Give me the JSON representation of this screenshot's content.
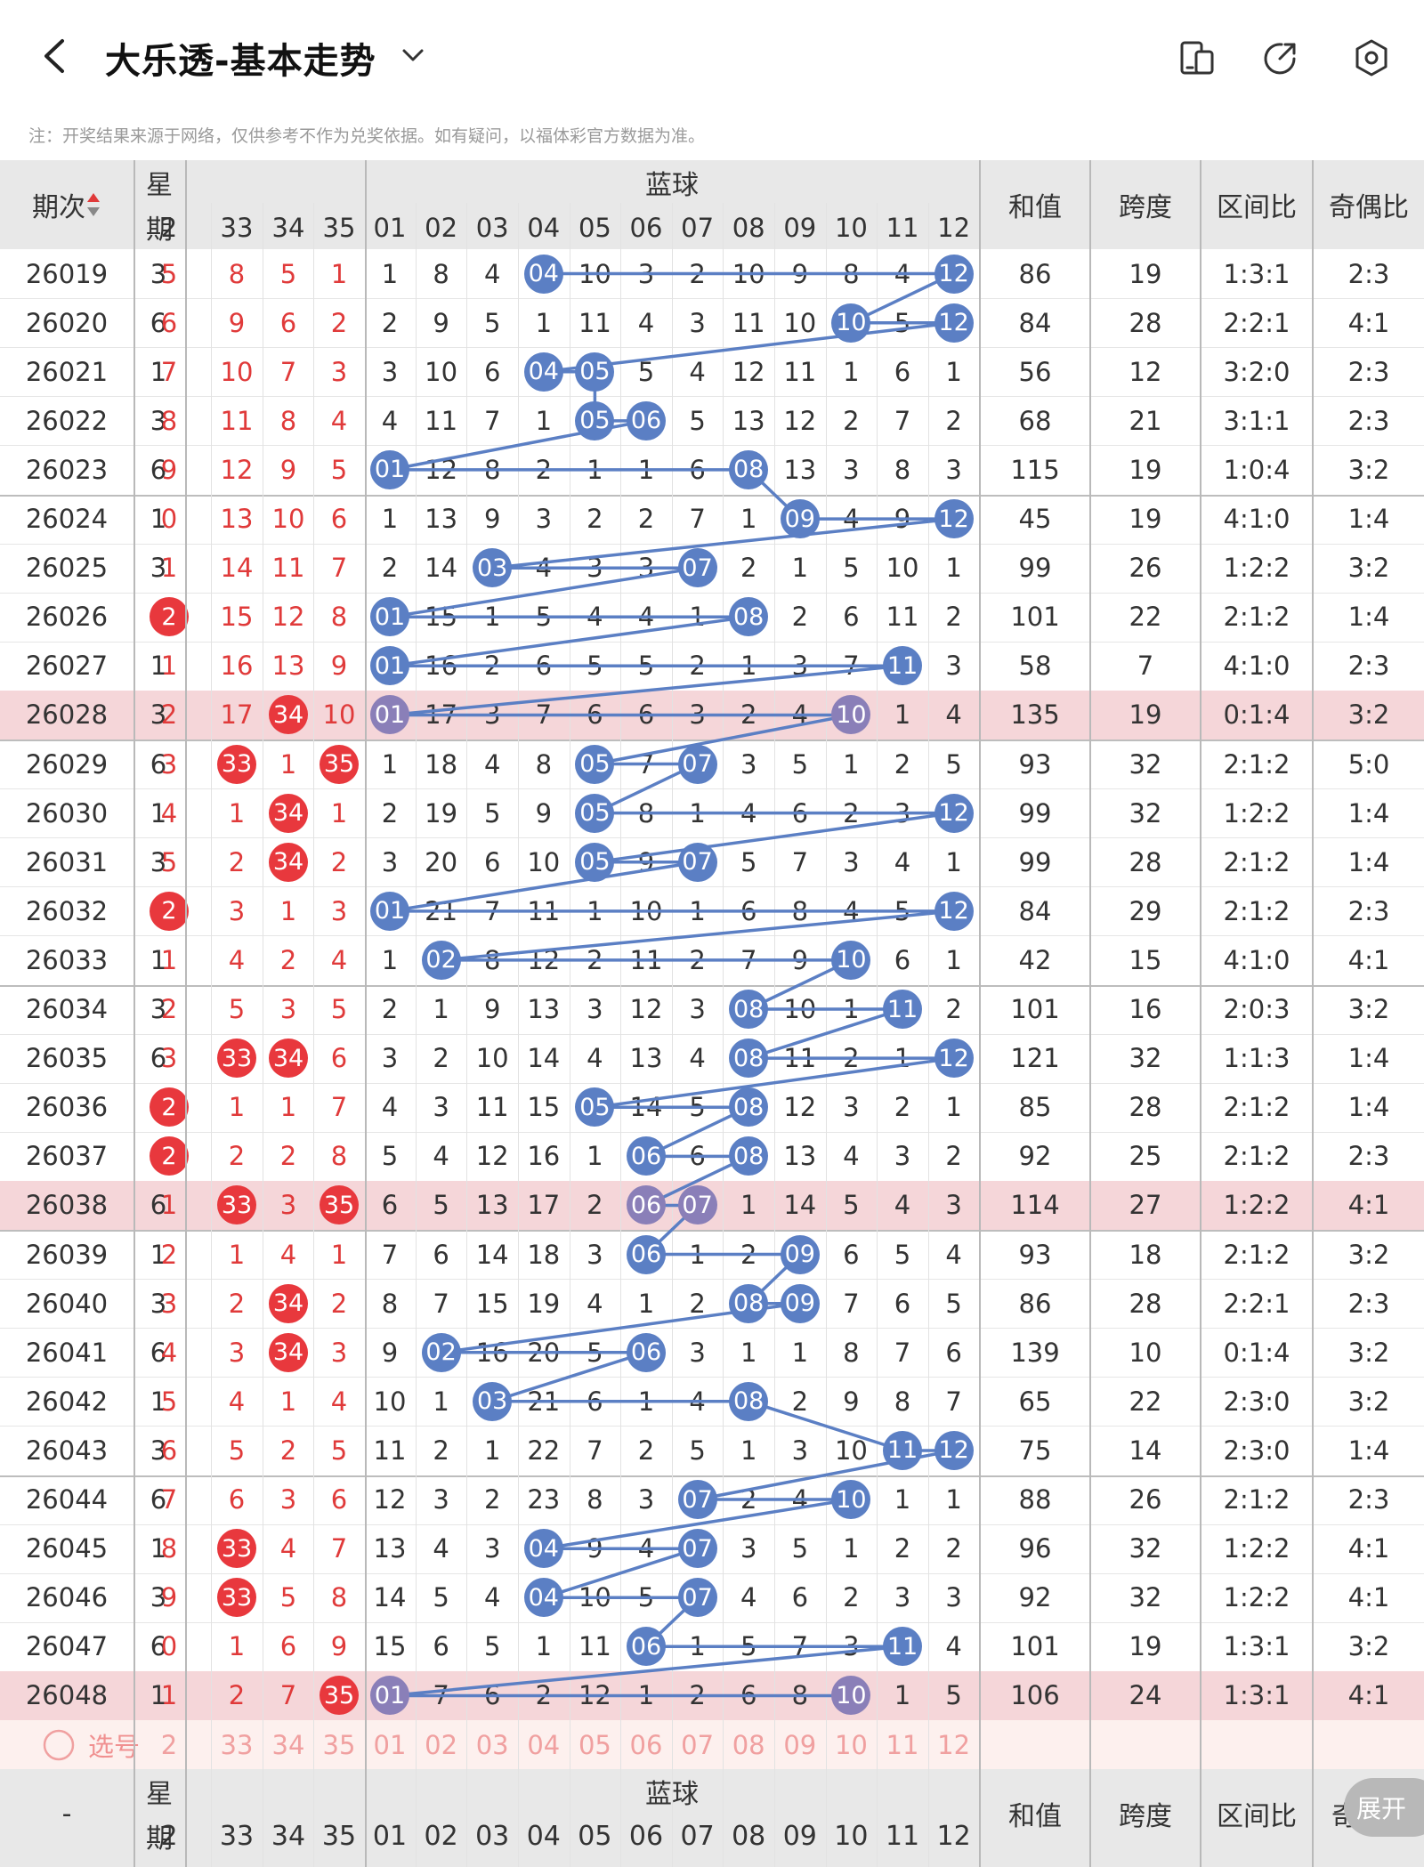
{
  "header": {
    "title": "大乐透-基本走势",
    "note": "注：开奖结果来源于网络，仅供参考不作为兑奖依据。如有疑问，以福体彩官方数据为准。"
  },
  "columns": {
    "period": "期次",
    "weekday_a": "星",
    "weekday_b": "期",
    "blue": "蓝球",
    "sum": "和值",
    "span": "跨度",
    "zone": "区间比",
    "parity": "奇偶比",
    "front_tail": [
      "2",
      "33",
      "34",
      "35"
    ],
    "blue_nums": [
      "01",
      "02",
      "03",
      "04",
      "05",
      "06",
      "07",
      "08",
      "09",
      "10",
      "11",
      "12"
    ],
    "sort_icon": "sort-arrows-icon"
  },
  "rows": [
    {
      "p": "26019",
      "w": "3",
      "f": [
        "5",
        "8",
        "5",
        "1"
      ],
      "fh": [],
      "b": [
        "1",
        "8",
        "4",
        "04",
        "10",
        "3",
        "2",
        "10",
        "9",
        "8",
        "4",
        "12"
      ],
      "bh": [
        3,
        11
      ],
      "s": "86",
      "sp": "19",
      "z": "1:3:1",
      "o": "2:3",
      "hl": false
    },
    {
      "p": "26020",
      "w": "6",
      "f": [
        "6",
        "9",
        "6",
        "2"
      ],
      "fh": [],
      "b": [
        "2",
        "9",
        "5",
        "1",
        "11",
        "4",
        "3",
        "11",
        "10",
        "10",
        "5",
        "12"
      ],
      "bh": [
        9,
        11
      ],
      "s": "84",
      "sp": "28",
      "z": "2:2:1",
      "o": "4:1",
      "hl": false
    },
    {
      "p": "26021",
      "w": "1",
      "f": [
        "7",
        "10",
        "7",
        "3"
      ],
      "fh": [],
      "b": [
        "3",
        "10",
        "6",
        "04",
        "05",
        "5",
        "4",
        "12",
        "11",
        "1",
        "6",
        "1"
      ],
      "bh": [
        3,
        4
      ],
      "s": "56",
      "sp": "12",
      "z": "3:2:0",
      "o": "2:3",
      "hl": false
    },
    {
      "p": "26022",
      "w": "3",
      "f": [
        "8",
        "11",
        "8",
        "4"
      ],
      "fh": [],
      "b": [
        "4",
        "11",
        "7",
        "1",
        "05",
        "06",
        "5",
        "13",
        "12",
        "2",
        "7",
        "2"
      ],
      "bh": [
        4,
        5
      ],
      "s": "68",
      "sp": "21",
      "z": "3:1:1",
      "o": "2:3",
      "hl": false
    },
    {
      "p": "26023",
      "w": "6",
      "f": [
        "9",
        "12",
        "9",
        "5"
      ],
      "fh": [],
      "b": [
        "01",
        "12",
        "8",
        "2",
        "1",
        "1",
        "6",
        "08",
        "13",
        "3",
        "8",
        "3"
      ],
      "bh": [
        0,
        7
      ],
      "s": "115",
      "sp": "19",
      "z": "1:0:4",
      "o": "3:2",
      "hl": false
    },
    {
      "p": "26024",
      "w": "1",
      "f": [
        "0",
        "13",
        "10",
        "6"
      ],
      "fh": [],
      "b": [
        "1",
        "13",
        "9",
        "3",
        "2",
        "2",
        "7",
        "1",
        "09",
        "4",
        "9",
        "12"
      ],
      "bh": [
        8,
        11
      ],
      "s": "45",
      "sp": "19",
      "z": "4:1:0",
      "o": "1:4",
      "hl": false
    },
    {
      "p": "26025",
      "w": "3",
      "f": [
        "1",
        "14",
        "11",
        "7"
      ],
      "fh": [],
      "b": [
        "2",
        "14",
        "03",
        "4",
        "3",
        "3",
        "07",
        "2",
        "1",
        "5",
        "10",
        "1"
      ],
      "bh": [
        2,
        6
      ],
      "s": "99",
      "sp": "26",
      "z": "1:2:2",
      "o": "3:2",
      "hl": false
    },
    {
      "p": "26026",
      "w": "6",
      "f": [
        "2",
        "15",
        "12",
        "8"
      ],
      "fh": [
        0
      ],
      "b": [
        "01",
        "15",
        "1",
        "5",
        "4",
        "4",
        "1",
        "08",
        "2",
        "6",
        "11",
        "2"
      ],
      "bh": [
        0,
        7
      ],
      "s": "101",
      "sp": "22",
      "z": "2:1:2",
      "o": "1:4",
      "hl": false
    },
    {
      "p": "26027",
      "w": "1",
      "f": [
        "1",
        "16",
        "13",
        "9"
      ],
      "fh": [],
      "b": [
        "01",
        "16",
        "2",
        "6",
        "5",
        "5",
        "2",
        "1",
        "3",
        "7",
        "11",
        "3"
      ],
      "bh": [
        0,
        10
      ],
      "s": "58",
      "sp": "7",
      "z": "4:1:0",
      "o": "2:3",
      "hl": false
    },
    {
      "p": "26028",
      "w": "3",
      "f": [
        "2",
        "17",
        "34",
        "10"
      ],
      "fh": [
        2
      ],
      "b": [
        "01",
        "17",
        "3",
        "7",
        "6",
        "6",
        "3",
        "2",
        "4",
        "10",
        "1",
        "4"
      ],
      "bh": [
        0,
        9
      ],
      "s": "135",
      "sp": "19",
      "z": "0:1:4",
      "o": "3:2",
      "hl": true
    },
    {
      "p": "26029",
      "w": "6",
      "f": [
        "3",
        "33",
        "1",
        "35"
      ],
      "fh": [
        1,
        3
      ],
      "b": [
        "1",
        "18",
        "4",
        "8",
        "05",
        "7",
        "07",
        "3",
        "5",
        "1",
        "2",
        "5"
      ],
      "bh": [
        4,
        6
      ],
      "s": "93",
      "sp": "32",
      "z": "2:1:2",
      "o": "5:0",
      "hl": false
    },
    {
      "p": "26030",
      "w": "1",
      "f": [
        "4",
        "1",
        "34",
        "1"
      ],
      "fh": [
        2
      ],
      "b": [
        "2",
        "19",
        "5",
        "9",
        "05",
        "8",
        "1",
        "4",
        "6",
        "2",
        "3",
        "12"
      ],
      "bh": [
        4,
        11
      ],
      "s": "99",
      "sp": "32",
      "z": "1:2:2",
      "o": "1:4",
      "hl": false
    },
    {
      "p": "26031",
      "w": "3",
      "f": [
        "5",
        "2",
        "34",
        "2"
      ],
      "fh": [
        2
      ],
      "b": [
        "3",
        "20",
        "6",
        "10",
        "05",
        "9",
        "07",
        "5",
        "7",
        "3",
        "4",
        "1"
      ],
      "bh": [
        4,
        6
      ],
      "s": "99",
      "sp": "28",
      "z": "2:1:2",
      "o": "1:4",
      "hl": false
    },
    {
      "p": "26032",
      "w": "6",
      "f": [
        "2",
        "3",
        "1",
        "3"
      ],
      "fh": [
        0
      ],
      "b": [
        "01",
        "21",
        "7",
        "11",
        "1",
        "10",
        "1",
        "6",
        "8",
        "4",
        "5",
        "12"
      ],
      "bh": [
        0,
        11
      ],
      "s": "84",
      "sp": "29",
      "z": "2:1:2",
      "o": "2:3",
      "hl": false
    },
    {
      "p": "26033",
      "w": "1",
      "f": [
        "1",
        "4",
        "2",
        "4"
      ],
      "fh": [],
      "b": [
        "1",
        "02",
        "8",
        "12",
        "2",
        "11",
        "2",
        "7",
        "9",
        "10",
        "6",
        "1"
      ],
      "bh": [
        1,
        9
      ],
      "s": "42",
      "sp": "15",
      "z": "4:1:0",
      "o": "4:1",
      "hl": false
    },
    {
      "p": "26034",
      "w": "3",
      "f": [
        "2",
        "5",
        "3",
        "5"
      ],
      "fh": [],
      "b": [
        "2",
        "1",
        "9",
        "13",
        "3",
        "12",
        "3",
        "08",
        "10",
        "1",
        "11",
        "2"
      ],
      "bh": [
        7,
        10
      ],
      "s": "101",
      "sp": "16",
      "z": "2:0:3",
      "o": "3:2",
      "hl": false
    },
    {
      "p": "26035",
      "w": "6",
      "f": [
        "3",
        "33",
        "34",
        "6"
      ],
      "fh": [
        1,
        2
      ],
      "b": [
        "3",
        "2",
        "10",
        "14",
        "4",
        "13",
        "4",
        "08",
        "11",
        "2",
        "1",
        "12"
      ],
      "bh": [
        7,
        11
      ],
      "s": "121",
      "sp": "32",
      "z": "1:1:3",
      "o": "1:4",
      "hl": false
    },
    {
      "p": "26036",
      "w": "1",
      "f": [
        "2",
        "1",
        "1",
        "7"
      ],
      "fh": [
        0
      ],
      "b": [
        "4",
        "3",
        "11",
        "15",
        "05",
        "14",
        "5",
        "08",
        "12",
        "3",
        "2",
        "1"
      ],
      "bh": [
        4,
        7
      ],
      "s": "85",
      "sp": "28",
      "z": "2:1:2",
      "o": "1:4",
      "hl": false
    },
    {
      "p": "26037",
      "w": "3",
      "f": [
        "2",
        "2",
        "2",
        "8"
      ],
      "fh": [
        0
      ],
      "b": [
        "5",
        "4",
        "12",
        "16",
        "1",
        "06",
        "6",
        "08",
        "13",
        "4",
        "3",
        "2"
      ],
      "bh": [
        5,
        7
      ],
      "s": "92",
      "sp": "25",
      "z": "2:1:2",
      "o": "2:3",
      "hl": false
    },
    {
      "p": "26038",
      "w": "6",
      "f": [
        "1",
        "33",
        "3",
        "35"
      ],
      "fh": [
        1,
        3
      ],
      "b": [
        "6",
        "5",
        "13",
        "17",
        "2",
        "06",
        "07",
        "1",
        "14",
        "5",
        "4",
        "3"
      ],
      "bh": [
        5,
        6
      ],
      "s": "114",
      "sp": "27",
      "z": "1:2:2",
      "o": "4:1",
      "hl": true
    },
    {
      "p": "26039",
      "w": "1",
      "f": [
        "2",
        "1",
        "4",
        "1"
      ],
      "fh": [],
      "b": [
        "7",
        "6",
        "14",
        "18",
        "3",
        "06",
        "1",
        "2",
        "09",
        "6",
        "5",
        "4"
      ],
      "bh": [
        5,
        8
      ],
      "s": "93",
      "sp": "18",
      "z": "2:1:2",
      "o": "3:2",
      "hl": false
    },
    {
      "p": "26040",
      "w": "3",
      "f": [
        "3",
        "2",
        "34",
        "2"
      ],
      "fh": [
        2
      ],
      "b": [
        "8",
        "7",
        "15",
        "19",
        "4",
        "1",
        "2",
        "08",
        "09",
        "7",
        "6",
        "5"
      ],
      "bh": [
        7,
        8
      ],
      "s": "86",
      "sp": "28",
      "z": "2:2:1",
      "o": "2:3",
      "hl": false
    },
    {
      "p": "26041",
      "w": "6",
      "f": [
        "4",
        "3",
        "34",
        "3"
      ],
      "fh": [
        2
      ],
      "b": [
        "9",
        "02",
        "16",
        "20",
        "5",
        "06",
        "3",
        "1",
        "1",
        "8",
        "7",
        "6"
      ],
      "bh": [
        1,
        5
      ],
      "s": "139",
      "sp": "10",
      "z": "0:1:4",
      "o": "3:2",
      "hl": false
    },
    {
      "p": "26042",
      "w": "1",
      "f": [
        "5",
        "4",
        "1",
        "4"
      ],
      "fh": [],
      "b": [
        "10",
        "1",
        "03",
        "21",
        "6",
        "1",
        "4",
        "08",
        "2",
        "9",
        "8",
        "7"
      ],
      "bh": [
        2,
        7
      ],
      "s": "65",
      "sp": "22",
      "z": "2:3:0",
      "o": "3:2",
      "hl": false
    },
    {
      "p": "26043",
      "w": "3",
      "f": [
        "6",
        "5",
        "2",
        "5"
      ],
      "fh": [],
      "b": [
        "11",
        "2",
        "1",
        "22",
        "7",
        "2",
        "5",
        "1",
        "3",
        "10",
        "11",
        "12"
      ],
      "bh": [
        10,
        11
      ],
      "s": "75",
      "sp": "14",
      "z": "2:3:0",
      "o": "1:4",
      "hl": false
    },
    {
      "p": "26044",
      "w": "6",
      "f": [
        "7",
        "6",
        "3",
        "6"
      ],
      "fh": [],
      "b": [
        "12",
        "3",
        "2",
        "23",
        "8",
        "3",
        "07",
        "2",
        "4",
        "10",
        "1",
        "1"
      ],
      "bh": [
        6,
        9
      ],
      "s": "88",
      "sp": "26",
      "z": "2:1:2",
      "o": "2:3",
      "hl": false
    },
    {
      "p": "26045",
      "w": "1",
      "f": [
        "8",
        "33",
        "4",
        "7"
      ],
      "fh": [
        1
      ],
      "b": [
        "13",
        "4",
        "3",
        "04",
        "9",
        "4",
        "07",
        "3",
        "5",
        "1",
        "2",
        "2"
      ],
      "bh": [
        3,
        6
      ],
      "s": "96",
      "sp": "32",
      "z": "1:2:2",
      "o": "4:1",
      "hl": false
    },
    {
      "p": "26046",
      "w": "3",
      "f": [
        "9",
        "33",
        "5",
        "8"
      ],
      "fh": [
        1
      ],
      "b": [
        "14",
        "5",
        "4",
        "04",
        "10",
        "5",
        "07",
        "4",
        "6",
        "2",
        "3",
        "3"
      ],
      "bh": [
        3,
        6
      ],
      "s": "92",
      "sp": "32",
      "z": "1:2:2",
      "o": "4:1",
      "hl": false
    },
    {
      "p": "26047",
      "w": "6",
      "f": [
        "0",
        "1",
        "6",
        "9"
      ],
      "fh": [],
      "b": [
        "15",
        "6",
        "5",
        "1",
        "11",
        "06",
        "1",
        "5",
        "7",
        "3",
        "11",
        "4"
      ],
      "bh": [
        5,
        10
      ],
      "s": "101",
      "sp": "19",
      "z": "1:3:1",
      "o": "3:2",
      "hl": false
    },
    {
      "p": "26048",
      "w": "1",
      "f": [
        "1",
        "2",
        "7",
        "35"
      ],
      "fh": [
        3
      ],
      "b": [
        "01",
        "7",
        "6",
        "2",
        "12",
        "1",
        "2",
        "6",
        "8",
        "10",
        "1",
        "5"
      ],
      "bh": [
        0,
        9
      ],
      "s": "106",
      "sp": "24",
      "z": "1:3:1",
      "o": "4:1",
      "hl": true
    }
  ],
  "pick": {
    "label": "选号",
    "front": [
      "2",
      "33",
      "34",
      "35"
    ],
    "blue": [
      "01",
      "02",
      "03",
      "04",
      "05",
      "06",
      "07",
      "08",
      "09",
      "10",
      "11",
      "12"
    ]
  },
  "footer": {
    "period": "-",
    "weekday_a": "星",
    "weekday_b": "期",
    "blue": "蓝球",
    "sum": "和值",
    "span": "跨度",
    "zone": "区间比",
    "parity": "奇",
    "expand": "展开"
  },
  "colors": {
    "red": "#e8383d",
    "blue": "#5b7fc4",
    "highlight": "#f5d6d9",
    "header": "#e8e8e8"
  }
}
